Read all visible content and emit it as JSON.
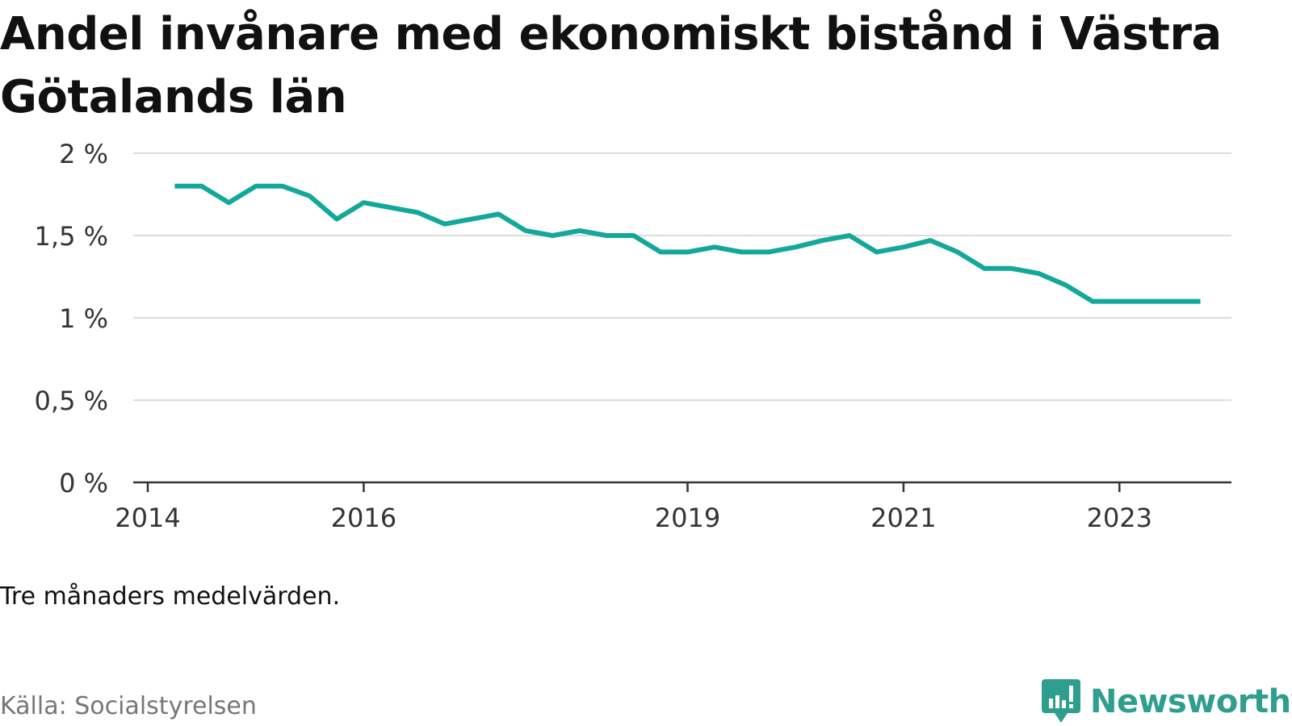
{
  "chart_data": {
    "type": "line",
    "title": "Andel invånare med ekonomiskt bistånd i Västra Götalands län",
    "y_ticks": [
      "0 %",
      "0,5 %",
      "1 %",
      "1,5 %",
      "2 %"
    ],
    "ylim": [
      0,
      2
    ],
    "x_ticks": [
      "2014",
      "2016",
      "2019",
      "2021",
      "2023"
    ],
    "grid": true,
    "series": [
      {
        "color": "#12a89a",
        "x": [
          "2014-04",
          "2014-07",
          "2014-10",
          "2015-01",
          "2015-04",
          "2015-07",
          "2015-10",
          "2016-01",
          "2016-04",
          "2016-07",
          "2016-10",
          "2017-01",
          "2017-04",
          "2017-07",
          "2017-10",
          "2018-01",
          "2018-04",
          "2018-07",
          "2018-10",
          "2019-01",
          "2019-04",
          "2019-07",
          "2019-10",
          "2020-01",
          "2020-04",
          "2020-07",
          "2020-10",
          "2021-01",
          "2021-04",
          "2021-07",
          "2021-10",
          "2022-01",
          "2022-04",
          "2022-07",
          "2022-10",
          "2023-01",
          "2023-04",
          "2023-07",
          "2023-10"
        ],
        "values": [
          1.8,
          1.8,
          1.7,
          1.8,
          1.8,
          1.74,
          1.6,
          1.7,
          1.67,
          1.64,
          1.57,
          1.6,
          1.63,
          1.53,
          1.5,
          1.53,
          1.5,
          1.5,
          1.4,
          1.4,
          1.43,
          1.4,
          1.4,
          1.43,
          1.47,
          1.5,
          1.4,
          1.43,
          1.47,
          1.4,
          1.3,
          1.3,
          1.27,
          1.2,
          1.1,
          1.1,
          1.1,
          1.1,
          1.1
        ]
      }
    ]
  },
  "note": "Tre månaders medelvärden.",
  "source": "Källa: Socialstyrelsen",
  "brand": "Newsworthy",
  "brand_color": "#2f9e8f",
  "logo_icon": "newsworthy-logo-icon"
}
